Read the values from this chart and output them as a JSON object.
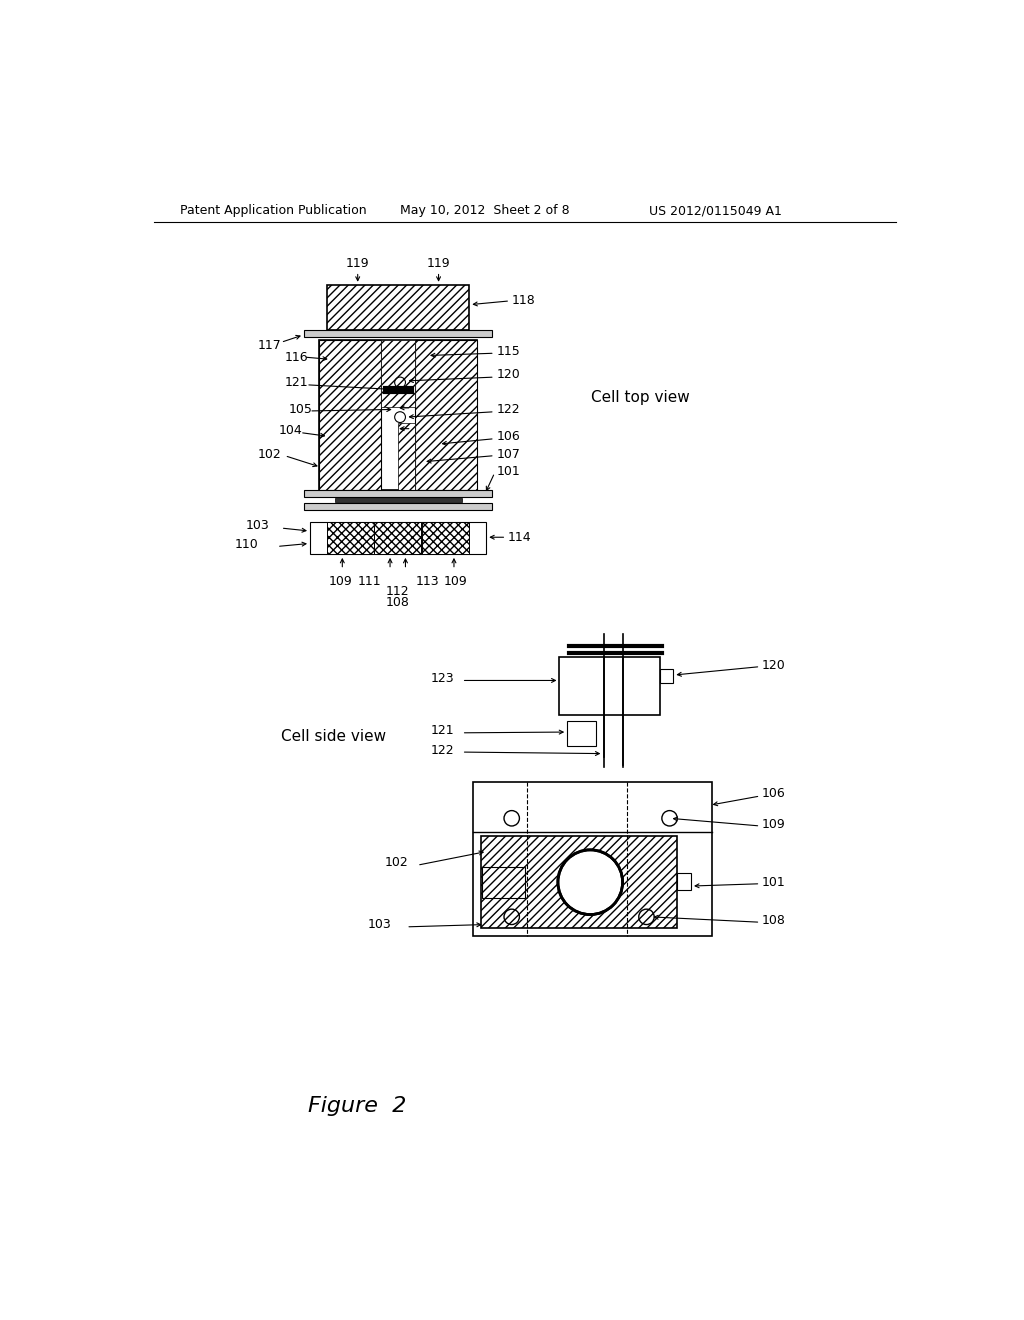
{
  "bg_color": "#ffffff",
  "header_left": "Patent Application Publication",
  "header_mid": "May 10, 2012  Sheet 2 of 8",
  "header_right": "US 2012/0115049 A1",
  "figure_label": "Figure  2",
  "cell_top_view_label": "Cell top view",
  "cell_side_view_label": "Cell side view"
}
